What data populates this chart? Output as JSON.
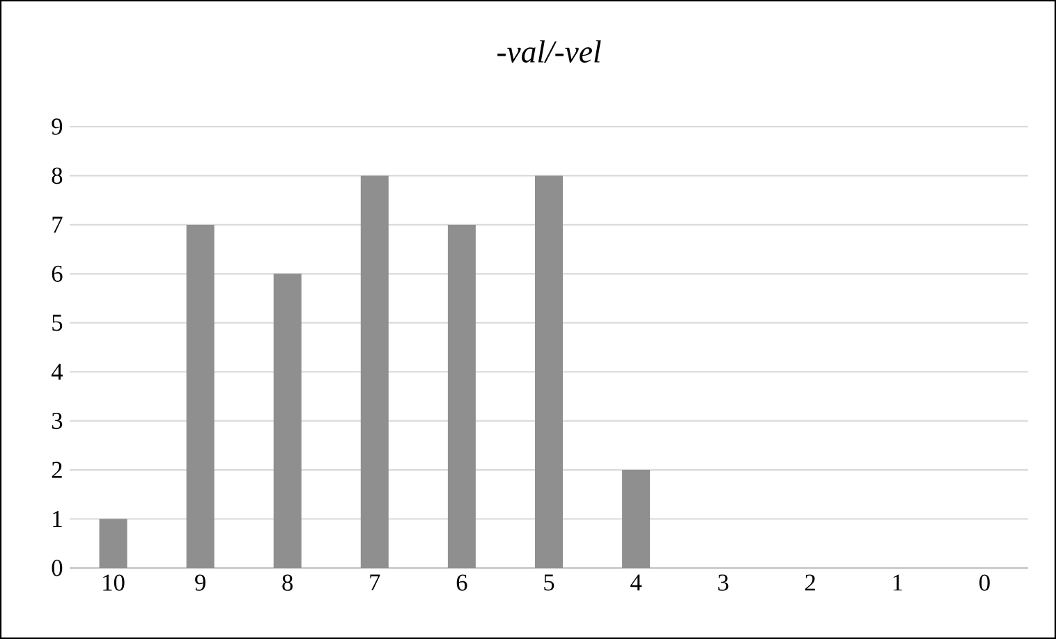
{
  "chart_data": {
    "type": "bar",
    "title": "-val/-vel",
    "categories": [
      "10",
      "9",
      "8",
      "7",
      "6",
      "5",
      "4",
      "3",
      "2",
      "1",
      "0"
    ],
    "values": [
      1,
      7,
      6,
      8,
      7,
      8,
      2,
      0,
      0,
      0,
      0
    ],
    "color": "#8f8f8f",
    "ylim": [
      0,
      9
    ],
    "yticks": [
      0,
      1,
      2,
      3,
      4,
      5,
      6,
      7,
      8,
      9
    ],
    "grid": "y"
  }
}
